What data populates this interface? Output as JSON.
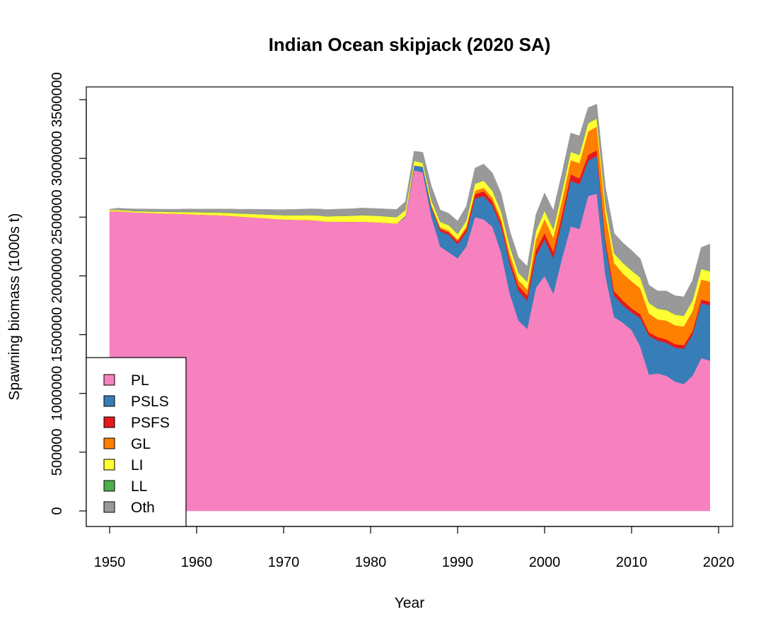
{
  "chart_data": {
    "type": "area",
    "stacked": true,
    "title": "Indian Ocean skipjack (2020 SA)",
    "xlabel": "Year",
    "ylabel": "Spawning biomass (1000s t)",
    "xlim": [
      1950,
      2020
    ],
    "ylim": [
      0,
      3500000
    ],
    "xticks": [
      1950,
      1960,
      1970,
      1980,
      1990,
      2000,
      2010,
      2020
    ],
    "yticks": [
      0,
      500000,
      1000000,
      1500000,
      2000000,
      2500000,
      3000000,
      3500000
    ],
    "ytick_labels": [
      "0",
      "500000",
      "1000000",
      "1500000",
      "2000000",
      "2500000",
      "3000000",
      "3500000"
    ],
    "xtick_labels": [
      "1950",
      "1960",
      "1970",
      "1980",
      "1990",
      "2000",
      "2010",
      "2020"
    ],
    "grid": false,
    "legend_position": "bottom-left",
    "x": [
      1950,
      1951,
      1952,
      1953,
      1954,
      1955,
      1956,
      1957,
      1958,
      1959,
      1960,
      1961,
      1962,
      1963,
      1964,
      1965,
      1966,
      1967,
      1968,
      1969,
      1970,
      1971,
      1972,
      1973,
      1974,
      1975,
      1976,
      1977,
      1978,
      1979,
      1980,
      1981,
      1982,
      1983,
      1984,
      1985,
      1986,
      1987,
      1988,
      1989,
      1990,
      1991,
      1992,
      1993,
      1994,
      1995,
      1996,
      1997,
      1998,
      1999,
      2000,
      2001,
      2002,
      2003,
      2004,
      2005,
      2006,
      2007,
      2008,
      2009,
      2010,
      2011,
      2012,
      2013,
      2014,
      2015,
      2016,
      2017,
      2018,
      2019
    ],
    "series": [
      {
        "name": "PL",
        "color": "#f781bf",
        "values": [
          2550000,
          2550000,
          2545000,
          2540000,
          2538000,
          2535000,
          2532000,
          2530000,
          2528000,
          2525000,
          2522000,
          2520000,
          2518000,
          2515000,
          2510000,
          2505000,
          2500000,
          2495000,
          2490000,
          2485000,
          2480000,
          2478000,
          2476000,
          2475000,
          2470000,
          2460000,
          2462000,
          2460000,
          2460000,
          2462000,
          2458000,
          2455000,
          2450000,
          2445000,
          2500000,
          2900000,
          2880000,
          2500000,
          2250000,
          2200000,
          2150000,
          2250000,
          2500000,
          2480000,
          2420000,
          2200000,
          1850000,
          1620000,
          1550000,
          1900000,
          2000000,
          1850000,
          2150000,
          2420000,
          2400000,
          2680000,
          2700000,
          2000000,
          1650000,
          1600000,
          1540000,
          1400000,
          1160000,
          1170000,
          1150000,
          1100000,
          1080000,
          1150000,
          1300000,
          1280000
        ]
      },
      {
        "name": "PSLS",
        "color": "#377eb8",
        "values": [
          0,
          0,
          0,
          0,
          0,
          0,
          0,
          0,
          0,
          0,
          0,
          0,
          0,
          0,
          0,
          0,
          0,
          0,
          0,
          0,
          0,
          0,
          0,
          0,
          0,
          0,
          0,
          0,
          0,
          0,
          0,
          0,
          0,
          0,
          10000,
          40000,
          50000,
          80000,
          130000,
          150000,
          120000,
          120000,
          160000,
          200000,
          180000,
          220000,
          250000,
          250000,
          240000,
          270000,
          310000,
          300000,
          320000,
          390000,
          380000,
          300000,
          320000,
          260000,
          180000,
          150000,
          150000,
          240000,
          330000,
          280000,
          280000,
          290000,
          300000,
          350000,
          470000,
          470000
        ]
      },
      {
        "name": "PSFS",
        "color": "#e41a1c",
        "values": [
          0,
          0,
          0,
          0,
          0,
          0,
          0,
          0,
          0,
          0,
          0,
          0,
          0,
          0,
          0,
          0,
          0,
          0,
          0,
          0,
          0,
          0,
          0,
          0,
          0,
          0,
          0,
          0,
          0,
          0,
          0,
          0,
          0,
          0,
          0,
          0,
          0,
          10000,
          20000,
          20000,
          25000,
          30000,
          35000,
          40000,
          35000,
          35000,
          40000,
          45000,
          45000,
          50000,
          55000,
          55000,
          55000,
          55000,
          50000,
          50000,
          50000,
          45000,
          40000,
          40000,
          35000,
          35000,
          30000,
          30000,
          30000,
          30000,
          30000,
          30000,
          30000,
          30000
        ]
      },
      {
        "name": "GL",
        "color": "#ff7f00",
        "values": [
          0,
          0,
          0,
          0,
          0,
          0,
          0,
          0,
          0,
          0,
          0,
          0,
          0,
          0,
          0,
          0,
          0,
          0,
          0,
          0,
          0,
          0,
          0,
          0,
          0,
          0,
          0,
          0,
          0,
          0,
          0,
          0,
          0,
          0,
          0,
          0,
          0,
          10000,
          15000,
          15000,
          15000,
          20000,
          30000,
          30000,
          30000,
          35000,
          50000,
          50000,
          50000,
          90000,
          120000,
          120000,
          120000,
          120000,
          130000,
          200000,
          200000,
          230000,
          240000,
          230000,
          230000,
          220000,
          160000,
          150000,
          160000,
          160000,
          160000,
          170000,
          170000,
          170000
        ]
      },
      {
        "name": "LI",
        "color": "#ffff33",
        "values": [
          10000,
          10000,
          10000,
          10000,
          12000,
          12000,
          14000,
          14000,
          16000,
          18000,
          20000,
          20000,
          22000,
          22000,
          25000,
          25000,
          28000,
          30000,
          32000,
          34000,
          36000,
          38000,
          40000,
          42000,
          44000,
          46000,
          48000,
          50000,
          52000,
          54000,
          55000,
          55000,
          55000,
          55000,
          50000,
          40000,
          30000,
          40000,
          45000,
          45000,
          45000,
          50000,
          60000,
          60000,
          60000,
          60000,
          60000,
          60000,
          65000,
          70000,
          70000,
          70000,
          70000,
          70000,
          70000,
          70000,
          70000,
          70000,
          80000,
          90000,
          90000,
          90000,
          90000,
          90000,
          90000,
          90000,
          90000,
          90000,
          90000,
          90000
        ]
      },
      {
        "name": "LL",
        "color": "#4daf4a",
        "values": [
          2000,
          2000,
          2000,
          2000,
          2000,
          2000,
          2000,
          2000,
          2000,
          2000,
          2000,
          2000,
          2000,
          2000,
          2000,
          2000,
          2000,
          2000,
          2000,
          2000,
          2000,
          2000,
          2000,
          2000,
          2000,
          2000,
          2000,
          2000,
          2000,
          2000,
          2000,
          2000,
          2000,
          2000,
          2000,
          2000,
          2000,
          2000,
          2000,
          2000,
          2000,
          2000,
          2000,
          2000,
          2000,
          2000,
          2000,
          2000,
          2000,
          2000,
          2000,
          2000,
          2000,
          2000,
          2000,
          2000,
          2000,
          2000,
          2000,
          2000,
          2000,
          2000,
          2000,
          2000,
          2000,
          2000,
          2000,
          2000,
          2000,
          2000
        ]
      },
      {
        "name": "Oth",
        "color": "#999999",
        "values": [
          5000,
          15000,
          15000,
          18000,
          18000,
          20000,
          20000,
          22000,
          22000,
          25000,
          25000,
          27000,
          27000,
          30000,
          32000,
          35000,
          38000,
          40000,
          42000,
          44000,
          46000,
          48000,
          50000,
          52000,
          54000,
          56000,
          56000,
          58000,
          58000,
          60000,
          60000,
          60000,
          62000,
          64000,
          70000,
          80000,
          90000,
          120000,
          100000,
          100000,
          110000,
          120000,
          130000,
          140000,
          150000,
          150000,
          130000,
          130000,
          130000,
          140000,
          150000,
          160000,
          160000,
          160000,
          160000,
          130000,
          120000,
          150000,
          170000,
          170000,
          170000,
          160000,
          150000,
          150000,
          160000,
          160000,
          160000,
          170000,
          180000,
          230000
        ]
      }
    ]
  }
}
